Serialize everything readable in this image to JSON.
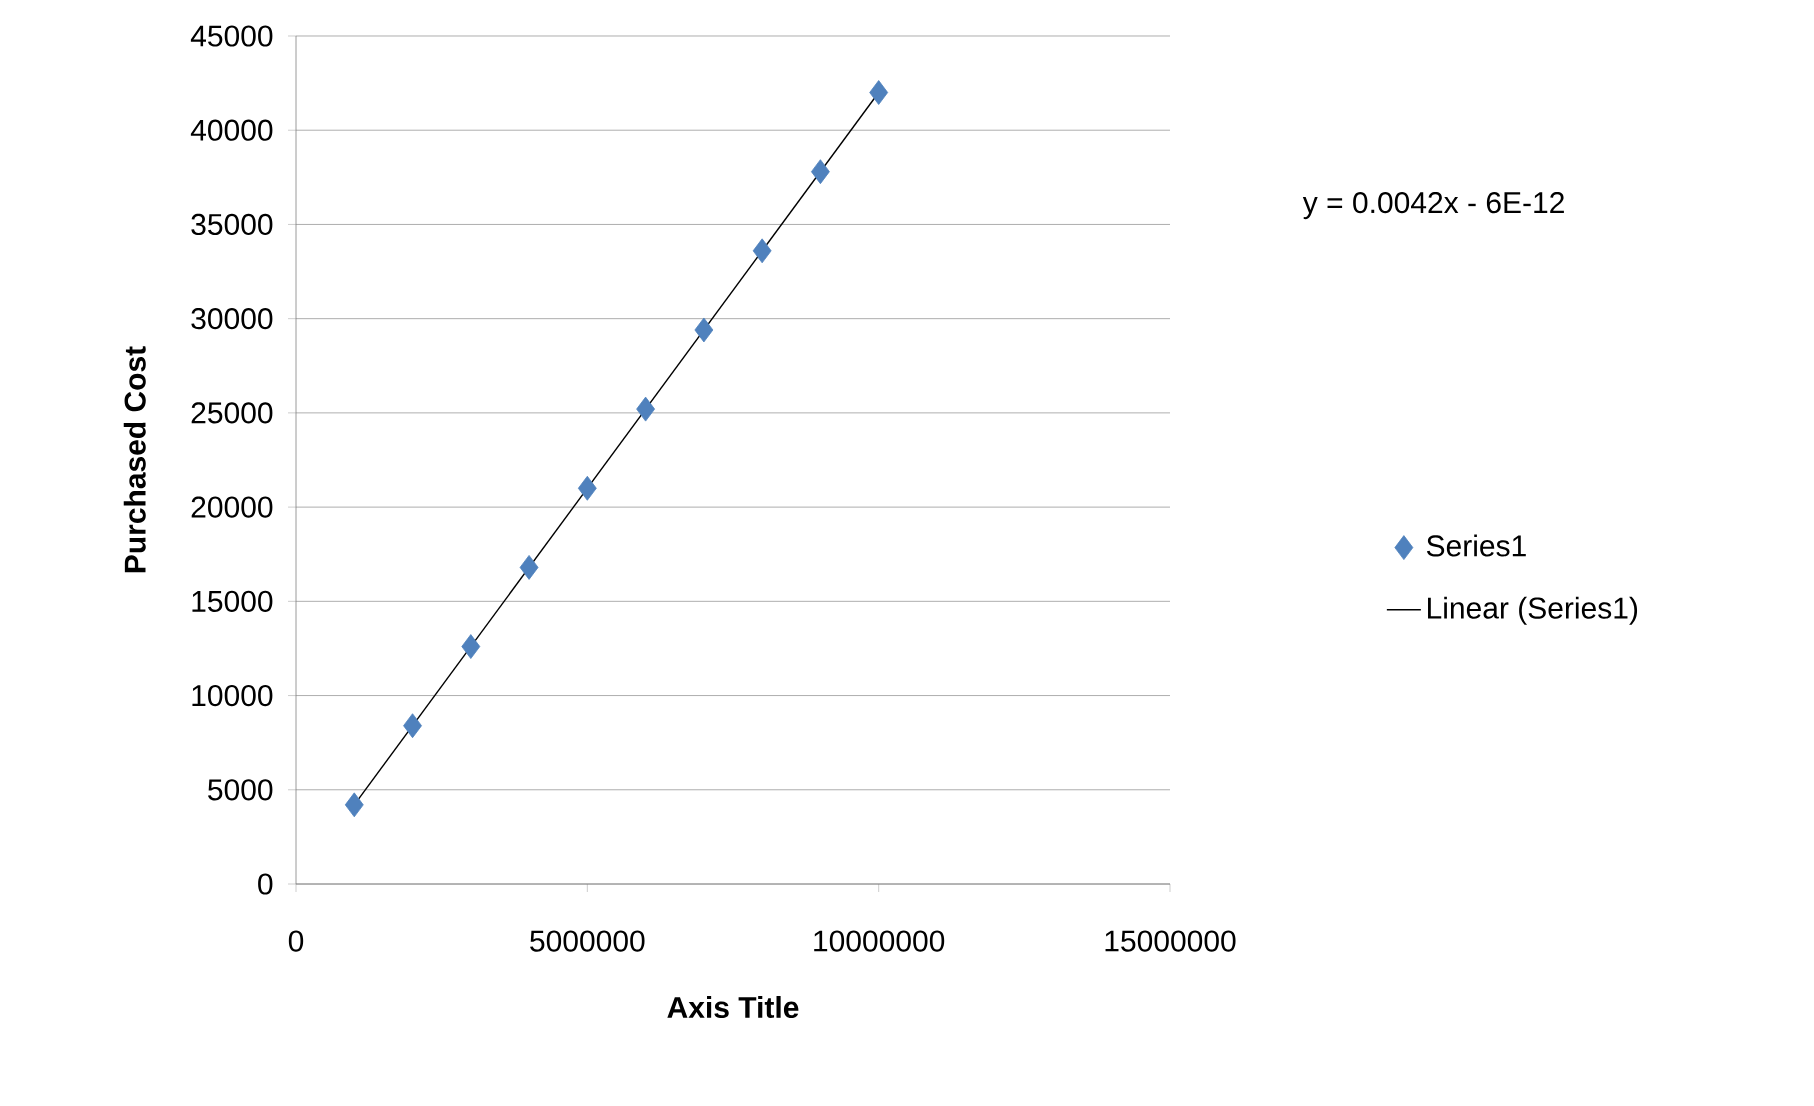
{
  "chart_data": {
    "type": "scatter",
    "xlabel": "Axis Title",
    "ylabel": "Purchased Cost",
    "annotations": [
      "y = 0.0042x - 6E-12"
    ],
    "series": [
      {
        "name": "Series1",
        "color": "#4f81bd",
        "marker": "diamond",
        "x": [
          1000000,
          2000000,
          3000000,
          4000000,
          5000000,
          6000000,
          7000000,
          8000000,
          9000000,
          10000000
        ],
        "values": [
          4200,
          8400,
          12600,
          16800,
          21000,
          25200,
          29400,
          33600,
          37800,
          42000
        ]
      },
      {
        "name": "Linear (Series1)",
        "type": "line",
        "color": "#000000",
        "marker": "none",
        "line_style": "solid",
        "x": [
          1000000,
          10000000
        ],
        "values": [
          4200,
          42000
        ]
      }
    ],
    "xlim": [
      0,
      15000000
    ],
    "xticks": [
      0,
      5000000,
      10000000,
      15000000
    ],
    "ylim": [
      0,
      45000
    ],
    "yticks": [
      0,
      5000,
      10000,
      15000,
      20000,
      25000,
      30000,
      35000,
      40000,
      45000
    ],
    "grid": "y",
    "legend": "right"
  }
}
